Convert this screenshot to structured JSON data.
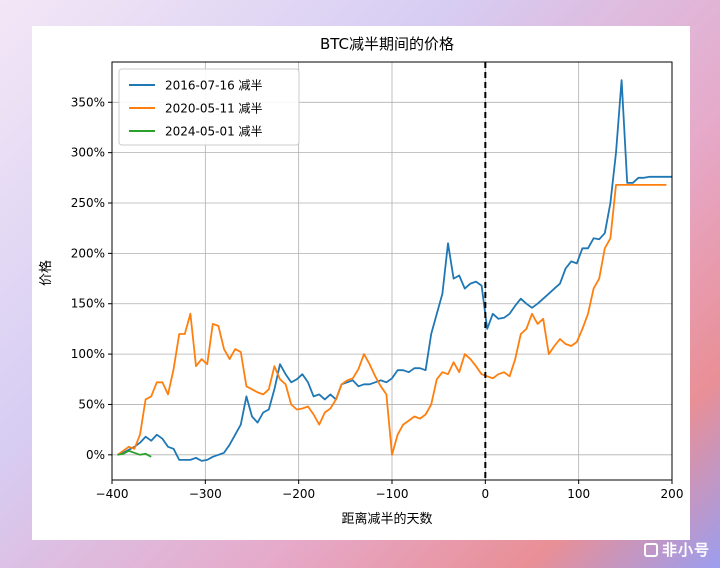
{
  "chart_data": {
    "type": "line",
    "title": "BTC减半期间的价格",
    "xlabel": "距离减半的天数",
    "ylabel": "价格",
    "xlim": [
      -400,
      200
    ],
    "ylim": [
      -25,
      390
    ],
    "x_ticks": [
      -400,
      -300,
      -200,
      -100,
      0,
      100,
      200
    ],
    "x_tick_labels": [
      "−400",
      "−300",
      "−200",
      "−100",
      "0",
      "100",
      "200"
    ],
    "y_ticks": [
      0,
      50,
      100,
      150,
      200,
      250,
      300,
      350
    ],
    "y_tick_labels": [
      "0%",
      "50%",
      "100%",
      "150%",
      "200%",
      "250%",
      "300%",
      "350%"
    ],
    "grid": true,
    "legend_position": "top-left",
    "vline": {
      "x": 0,
      "style": "dashed",
      "color": "#000000"
    },
    "series": [
      {
        "name": "2016-07-16 减半",
        "color": "#1f77b4",
        "x": [
          -394,
          -388,
          -382,
          -376,
          -370,
          -364,
          -358,
          -352,
          -346,
          -340,
          -334,
          -328,
          -322,
          -316,
          -310,
          -304,
          -298,
          -292,
          -286,
          -280,
          -274,
          -268,
          -262,
          -256,
          -250,
          -244,
          -238,
          -232,
          -226,
          -220,
          -214,
          -208,
          -202,
          -196,
          -190,
          -184,
          -178,
          -172,
          -166,
          -160,
          -154,
          -148,
          -142,
          -136,
          -130,
          -124,
          -118,
          -112,
          -106,
          -100,
          -94,
          -88,
          -82,
          -76,
          -70,
          -64,
          -58,
          -52,
          -46,
          -40,
          -34,
          -28,
          -22,
          -16,
          -10,
          -4,
          2,
          8,
          14,
          20,
          26,
          32,
          38,
          44,
          50,
          56,
          62,
          68,
          74,
          80,
          86,
          92,
          98,
          104,
          110,
          116,
          122,
          128,
          134,
          140,
          146,
          152,
          158,
          164,
          170,
          176,
          182,
          188,
          194,
          200
        ],
        "y": [
          0,
          2,
          5,
          8,
          12,
          18,
          14,
          20,
          16,
          8,
          6,
          -5,
          -5,
          -5,
          -3,
          -6,
          -5,
          -2,
          0,
          2,
          10,
          20,
          30,
          58,
          38,
          32,
          42,
          45,
          65,
          90,
          80,
          72,
          75,
          80,
          72,
          58,
          60,
          55,
          60,
          55,
          70,
          72,
          74,
          68,
          70,
          70,
          72,
          74,
          72,
          76,
          84,
          84,
          82,
          86,
          86,
          84,
          120,
          140,
          160,
          210,
          175,
          178,
          165,
          170,
          172,
          168,
          125,
          140,
          135,
          136,
          140,
          148,
          155,
          150,
          146,
          150,
          155,
          160,
          165,
          170,
          185,
          192,
          190,
          205,
          205,
          215,
          214,
          220,
          250,
          300,
          372,
          270,
          270,
          275,
          275,
          276,
          276,
          276,
          276,
          276
        ]
      },
      {
        "name": "2020-05-11 减半",
        "color": "#ff7f0e",
        "x": [
          -394,
          -388,
          -382,
          -376,
          -370,
          -364,
          -358,
          -352,
          -346,
          -340,
          -334,
          -328,
          -322,
          -316,
          -310,
          -304,
          -298,
          -292,
          -286,
          -280,
          -274,
          -268,
          -262,
          -256,
          -250,
          -244,
          -238,
          -232,
          -226,
          -220,
          -214,
          -208,
          -202,
          -196,
          -190,
          -184,
          -178,
          -172,
          -166,
          -160,
          -154,
          -148,
          -142,
          -136,
          -130,
          -124,
          -118,
          -112,
          -106,
          -100,
          -94,
          -88,
          -82,
          -76,
          -70,
          -64,
          -58,
          -52,
          -46,
          -40,
          -34,
          -28,
          -22,
          -16,
          -10,
          -4,
          2,
          8,
          14,
          20,
          26,
          32,
          38,
          44,
          50,
          56,
          62,
          68,
          74,
          80,
          86,
          92,
          98,
          104,
          110,
          116,
          122,
          128,
          134,
          140,
          146,
          152,
          158,
          164,
          170,
          176,
          182,
          188,
          194
        ],
        "y": [
          0,
          4,
          8,
          6,
          20,
          55,
          58,
          72,
          72,
          60,
          85,
          120,
          120,
          140,
          88,
          95,
          90,
          130,
          128,
          105,
          95,
          105,
          102,
          68,
          65,
          62,
          60,
          65,
          88,
          75,
          70,
          50,
          45,
          46,
          48,
          40,
          30,
          42,
          46,
          55,
          70,
          74,
          76,
          85,
          100,
          90,
          78,
          68,
          60,
          0,
          20,
          30,
          34,
          38,
          36,
          40,
          50,
          75,
          82,
          80,
          92,
          82,
          100,
          95,
          88,
          80,
          78,
          76,
          80,
          82,
          78,
          95,
          120,
          125,
          140,
          130,
          135,
          100,
          108,
          115,
          110,
          108,
          112,
          125,
          140,
          165,
          175,
          205,
          215,
          268,
          268,
          268,
          268,
          268,
          268,
          268,
          268,
          268,
          268
        ]
      },
      {
        "name": "2024-05-01 减半",
        "color": "#2ca02c",
        "x": [
          -394,
          -388,
          -382,
          -376,
          -370,
          -364,
          -358
        ],
        "y": [
          0,
          1,
          4,
          2,
          0,
          1,
          -2
        ]
      }
    ]
  }
}
